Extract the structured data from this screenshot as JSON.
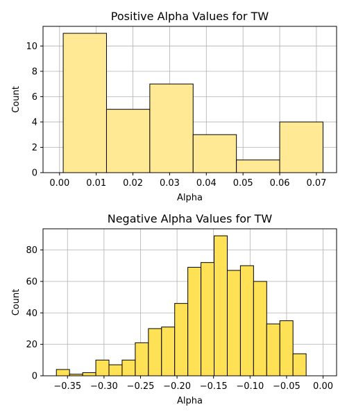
{
  "colors": {
    "positive_fill": "#ffe994",
    "negative_fill": "#ffe156",
    "edge": "#000000",
    "grid": "#b0b0b0"
  },
  "chart_data": [
    {
      "type": "bar",
      "title": "Positive Alpha Values for TW",
      "xlabel": "Alpha",
      "ylabel": "Count",
      "grid": true,
      "xlim": [
        -0.0045,
        0.0755
      ],
      "ylim": [
        0,
        11.55
      ],
      "xticks": [
        0.0,
        0.01,
        0.02,
        0.03,
        0.04,
        0.05,
        0.06,
        0.07
      ],
      "xtick_labels": [
        "0.00",
        "0.01",
        "0.02",
        "0.03",
        "0.04",
        "0.05",
        "0.06",
        "0.07"
      ],
      "yticks": [
        0,
        2,
        4,
        6,
        8,
        10
      ],
      "ytick_labels": [
        "0",
        "2",
        "4",
        "6",
        "8",
        "10"
      ],
      "bins": [
        {
          "x0": 0.001,
          "x1": 0.0128,
          "count": 11
        },
        {
          "x0": 0.0128,
          "x1": 0.0246,
          "count": 5
        },
        {
          "x0": 0.0246,
          "x1": 0.0364,
          "count": 7
        },
        {
          "x0": 0.0364,
          "x1": 0.0482,
          "count": 3
        },
        {
          "x0": 0.0482,
          "x1": 0.06,
          "count": 1
        },
        {
          "x0": 0.06,
          "x1": 0.0718,
          "count": 4
        }
      ]
    },
    {
      "type": "bar",
      "title": "Negative Alpha Values for TW",
      "xlabel": "Alpha",
      "ylabel": "Count",
      "grid": true,
      "xlim": [
        -0.3835,
        0.0185
      ],
      "ylim": [
        0,
        93.45
      ],
      "xticks": [
        -0.35,
        -0.3,
        -0.25,
        -0.2,
        -0.15,
        -0.1,
        -0.05,
        0.0
      ],
      "xtick_labels": [
        "−0.35",
        "−0.30",
        "−0.25",
        "−0.20",
        "−0.15",
        "−0.10",
        "−0.05",
        "0.00"
      ],
      "yticks": [
        0,
        20,
        40,
        60,
        80
      ],
      "ytick_labels": [
        "0",
        "20",
        "40",
        "60",
        "80"
      ],
      "bins": [
        {
          "x0": -0.3652,
          "x1": -0.3472,
          "count": 4
        },
        {
          "x0": -0.3472,
          "x1": -0.3292,
          "count": 1
        },
        {
          "x0": -0.3292,
          "x1": -0.3112,
          "count": 2
        },
        {
          "x0": -0.3112,
          "x1": -0.2932,
          "count": 10
        },
        {
          "x0": -0.2932,
          "x1": -0.2752,
          "count": 7
        },
        {
          "x0": -0.2752,
          "x1": -0.2572,
          "count": 10
        },
        {
          "x0": -0.2572,
          "x1": -0.2392,
          "count": 21
        },
        {
          "x0": -0.2392,
          "x1": -0.2212,
          "count": 30
        },
        {
          "x0": -0.2212,
          "x1": -0.2032,
          "count": 31
        },
        {
          "x0": -0.2032,
          "x1": -0.1852,
          "count": 46
        },
        {
          "x0": -0.1852,
          "x1": -0.1672,
          "count": 69
        },
        {
          "x0": -0.1672,
          "x1": -0.1492,
          "count": 72
        },
        {
          "x0": -0.1492,
          "x1": -0.1312,
          "count": 89
        },
        {
          "x0": -0.1312,
          "x1": -0.1132,
          "count": 67
        },
        {
          "x0": -0.1132,
          "x1": -0.0952,
          "count": 70
        },
        {
          "x0": -0.0952,
          "x1": -0.0772,
          "count": 60
        },
        {
          "x0": -0.0772,
          "x1": -0.0592,
          "count": 33
        },
        {
          "x0": -0.0592,
          "x1": -0.0412,
          "count": 35
        },
        {
          "x0": -0.0412,
          "x1": -0.0232,
          "count": 14
        }
      ]
    }
  ]
}
